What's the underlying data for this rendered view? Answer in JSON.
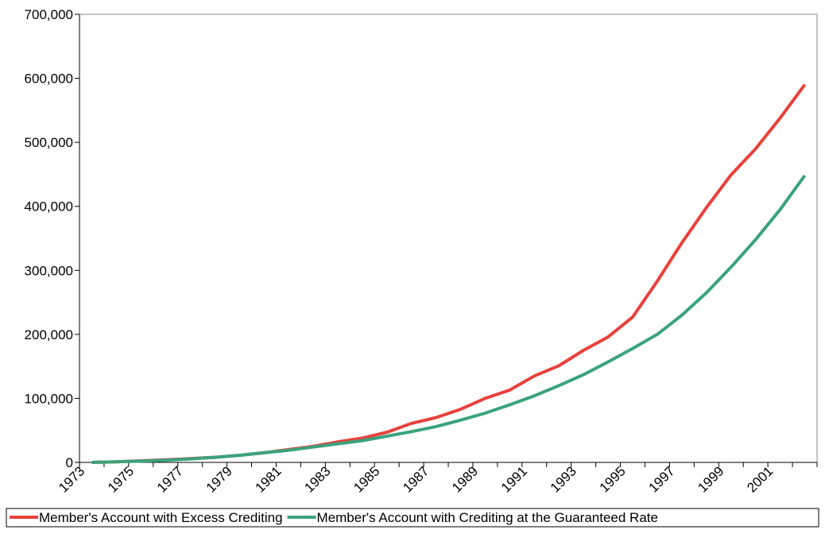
{
  "chart_data": {
    "type": "line",
    "categories": [
      "1973",
      null,
      "1975",
      null,
      "1977",
      null,
      "1979",
      null,
      "1981",
      null,
      "1983",
      null,
      "1985",
      null,
      "1987",
      null,
      "1989",
      null,
      "1991",
      null,
      "1993",
      null,
      "1995",
      null,
      "1997",
      null,
      "1999",
      null,
      "2001",
      null
    ],
    "series": [
      {
        "name": "Member's Account with Excess Crediting",
        "color": "#e8413c",
        "values": [
          0,
          1000,
          2500,
          4000,
          6000,
          8000,
          11000,
          15000,
          20000,
          25000,
          32000,
          38000,
          47000,
          61000,
          70000,
          83000,
          100000,
          113000,
          135000,
          151000,
          175000,
          196000,
          227000,
          283000,
          343000,
          398000,
          449000,
          490000,
          538000,
          590000
        ]
      },
      {
        "name": "Member's Account with Crediting at the Guaranteed Rate",
        "color": "#3aa37c",
        "values": [
          0,
          1000,
          2000,
          3500,
          5500,
          8000,
          11000,
          15000,
          19000,
          24000,
          29000,
          34000,
          41000,
          48000,
          56000,
          66000,
          77000,
          90000,
          104000,
          120000,
          137000,
          157000,
          178000,
          200000,
          230000,
          265000,
          305000,
          348000,
          395000,
          448000
        ]
      }
    ],
    "ylim": [
      0,
      700000
    ],
    "yticks": [
      0,
      {
        "value": 100000,
        "label": "100,000"
      },
      {
        "value": 200000,
        "label": "200,000"
      },
      {
        "value": 300000,
        "label": "300,000"
      },
      {
        "value": 400000,
        "label": "400,000"
      },
      {
        "value": 500000,
        "label": "500,000"
      },
      {
        "value": 600000,
        "label": "600,000"
      },
      {
        "value": 700000,
        "label": "700,000"
      }
    ],
    "legend": "bottom"
  }
}
